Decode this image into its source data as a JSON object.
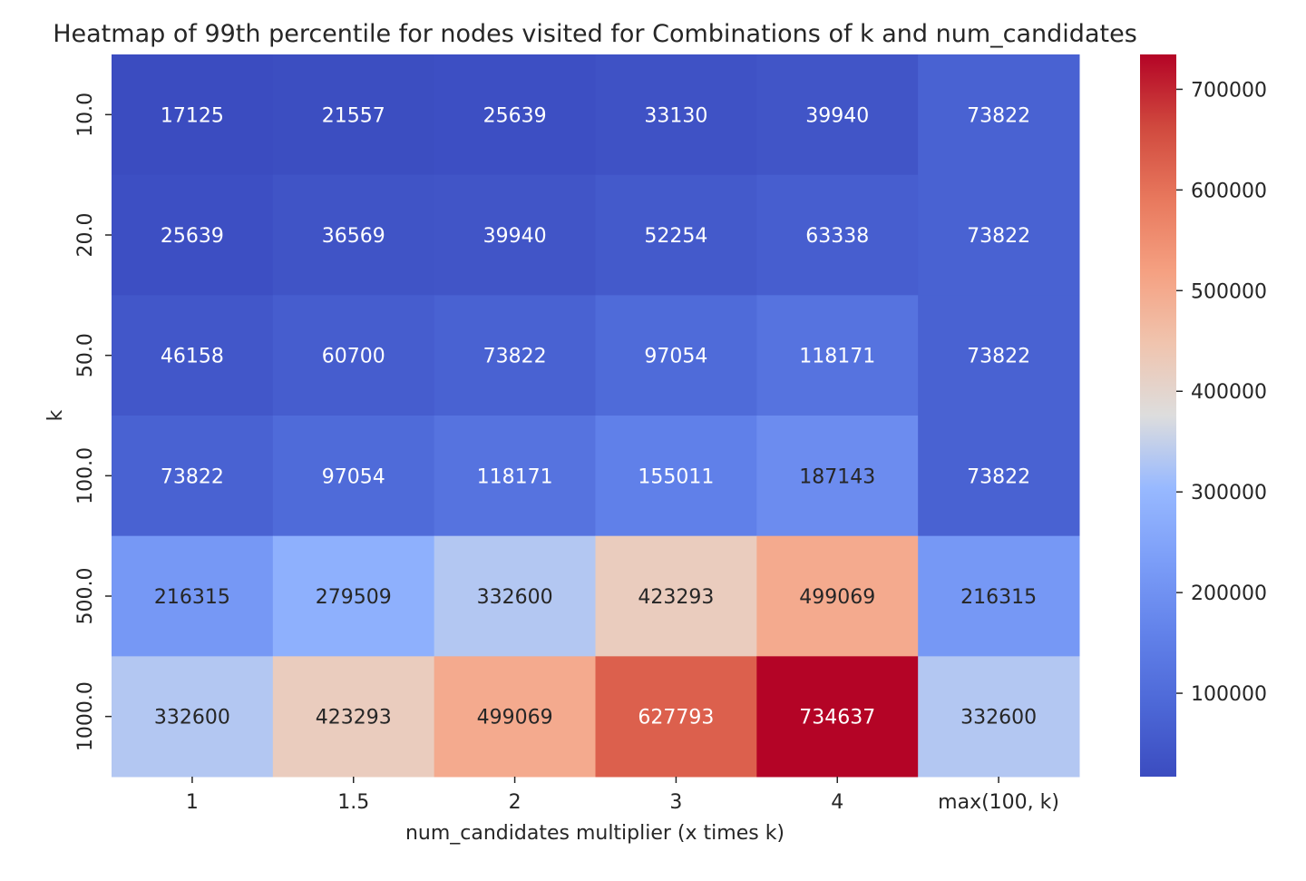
{
  "chart_data": {
    "type": "heatmap",
    "title": "Heatmap of 99th percentile for nodes visited for Combinations of k and num_candidates",
    "xlabel": "num_candidates multiplier (x times k)",
    "ylabel": "k",
    "x_categories": [
      "1",
      "1.5",
      "2",
      "3",
      "4",
      "max(100, k)"
    ],
    "y_categories": [
      "10.0",
      "20.0",
      "50.0",
      "100.0",
      "500.0",
      "1000.0"
    ],
    "values": [
      [
        17125,
        21557,
        25639,
        33130,
        39940,
        73822
      ],
      [
        25639,
        36569,
        39940,
        52254,
        63338,
        73822
      ],
      [
        46158,
        60700,
        73822,
        97054,
        118171,
        73822
      ],
      [
        73822,
        97054,
        118171,
        155011,
        187143,
        73822
      ],
      [
        216315,
        279509,
        332600,
        423293,
        499069,
        216315
      ],
      [
        332600,
        423293,
        499069,
        627793,
        734637,
        332600
      ]
    ],
    "colormap": "coolwarm",
    "colorbar": {
      "min": 17125,
      "max": 734637,
      "ticks": [
        100000,
        200000,
        300000,
        400000,
        500000,
        600000,
        700000
      ],
      "tick_labels": [
        "100000",
        "200000",
        "300000",
        "400000",
        "500000",
        "600000",
        "700000"
      ]
    },
    "colors": {
      "low": "#3b4cc0",
      "mid": "#dddddd",
      "high": "#b40426",
      "text_dark": "#262626",
      "text_light": "#ffffff"
    }
  }
}
